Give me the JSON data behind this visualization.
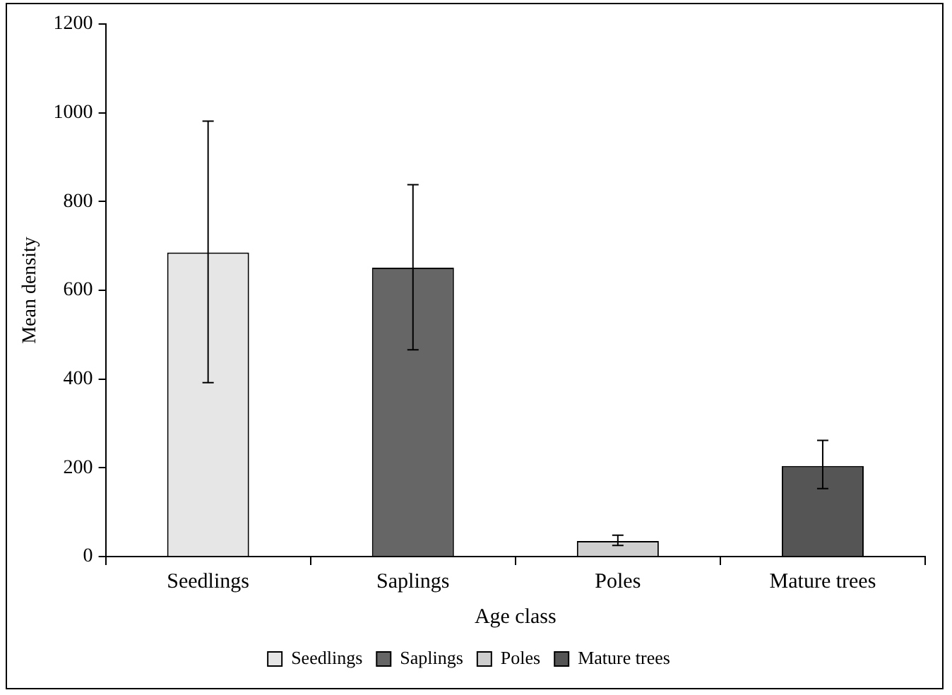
{
  "chart_data": {
    "type": "bar",
    "xlabel": "Age class",
    "ylabel": "Mean density",
    "categories": [
      "Seedlings",
      "Saplings",
      "Poles",
      "Mature trees"
    ],
    "series": [
      {
        "name": "Seedlings",
        "color": "#e6e6e6",
        "values": [
          685,
          null,
          null,
          null
        ],
        "errors": [
          [
            392,
            981
          ],
          null,
          null,
          null
        ]
      },
      {
        "name": "Saplings",
        "color": "#666666",
        "values": [
          null,
          651,
          null,
          null
        ],
        "errors": [
          null,
          [
            466,
            838
          ],
          null,
          null
        ]
      },
      {
        "name": "Poles",
        "color": "#cfcfcf",
        "values": [
          null,
          null,
          35,
          null
        ],
        "errors": [
          null,
          null,
          [
            25,
            48
          ],
          null
        ]
      },
      {
        "name": "Mature trees",
        "color": "#555555",
        "values": [
          null,
          null,
          null,
          204
        ],
        "errors": [
          null,
          null,
          null,
          [
            153,
            262
          ]
        ]
      }
    ],
    "ylim": [
      0,
      1200
    ],
    "yticks": [
      0,
      200,
      400,
      600,
      800,
      1000,
      1200
    ],
    "grid": false,
    "legend": "bottom"
  }
}
